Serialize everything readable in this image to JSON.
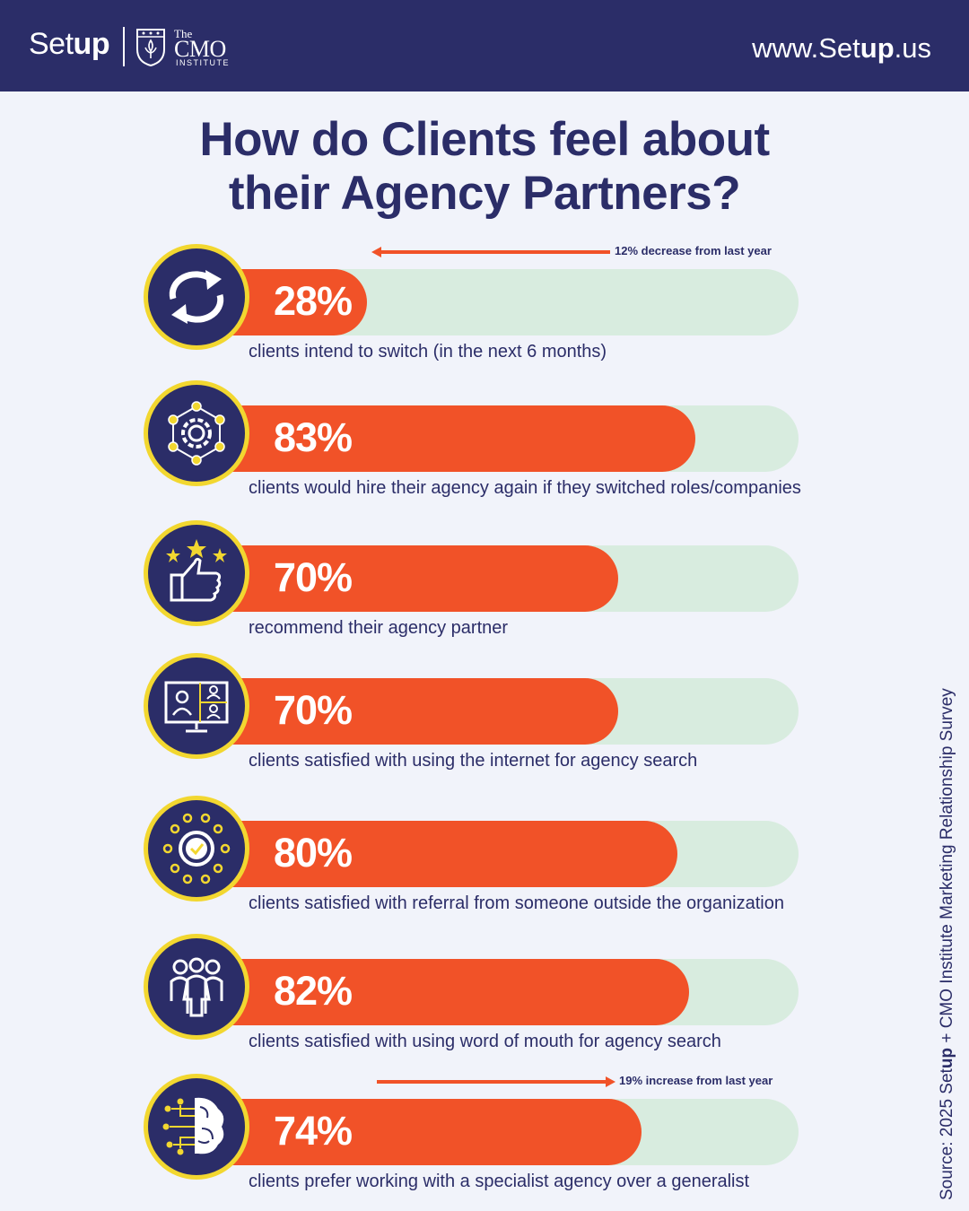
{
  "header": {
    "logo_setup_plain": "Set",
    "logo_setup_bold": "up",
    "logo_cmo_the": "The",
    "logo_cmo_main": "CMO",
    "logo_cmo_sub": "INSTITUTE",
    "website_prefix": "www.Set",
    "website_bold": "up",
    "website_suffix": ".us"
  },
  "title_line1": "How do Clients feel about",
  "title_line2": "their Agency Partners?",
  "colors": {
    "navy": "#2b2d68",
    "orange": "#f15228",
    "track": "#d8ecdf",
    "yellow": "#f2d730"
  },
  "chart_data": {
    "type": "bar",
    "orientation": "horizontal",
    "xlim": [
      0,
      100
    ],
    "unit": "%",
    "items": [
      {
        "value": 28,
        "label": "28%",
        "description": "clients intend to switch (in the next 6 months)",
        "icon": "switch-arrows-icon",
        "note": {
          "text": "12% decrease from last year",
          "direction": "left"
        }
      },
      {
        "value": 83,
        "label": "83%",
        "description": "clients would hire their agency again if they switched roles/companies",
        "icon": "gear-network-icon"
      },
      {
        "value": 70,
        "label": "70%",
        "description": "recommend their agency partner",
        "icon": "thumbs-up-stars-icon"
      },
      {
        "value": 70,
        "label": "70%",
        "description": "clients satisfied with using the internet for agency search",
        "icon": "video-call-monitor-icon"
      },
      {
        "value": 80,
        "label": "80%",
        "description": "clients satisfied with referral from someone outside the organization",
        "icon": "check-network-icon"
      },
      {
        "value": 82,
        "label": "82%",
        "description": "clients satisfied with using word of mouth for agency search",
        "icon": "people-group-icon"
      },
      {
        "value": 74,
        "label": "74%",
        "description": "clients prefer working with a specialist agency over a generalist",
        "icon": "brain-circuit-icon",
        "note": {
          "text": "19% increase from last year",
          "direction": "right"
        }
      }
    ]
  },
  "source": {
    "prefix": "Source: 2025 Set",
    "bold": "up",
    "suffix": " + CMO Institute Marketing Relationship Survey"
  }
}
